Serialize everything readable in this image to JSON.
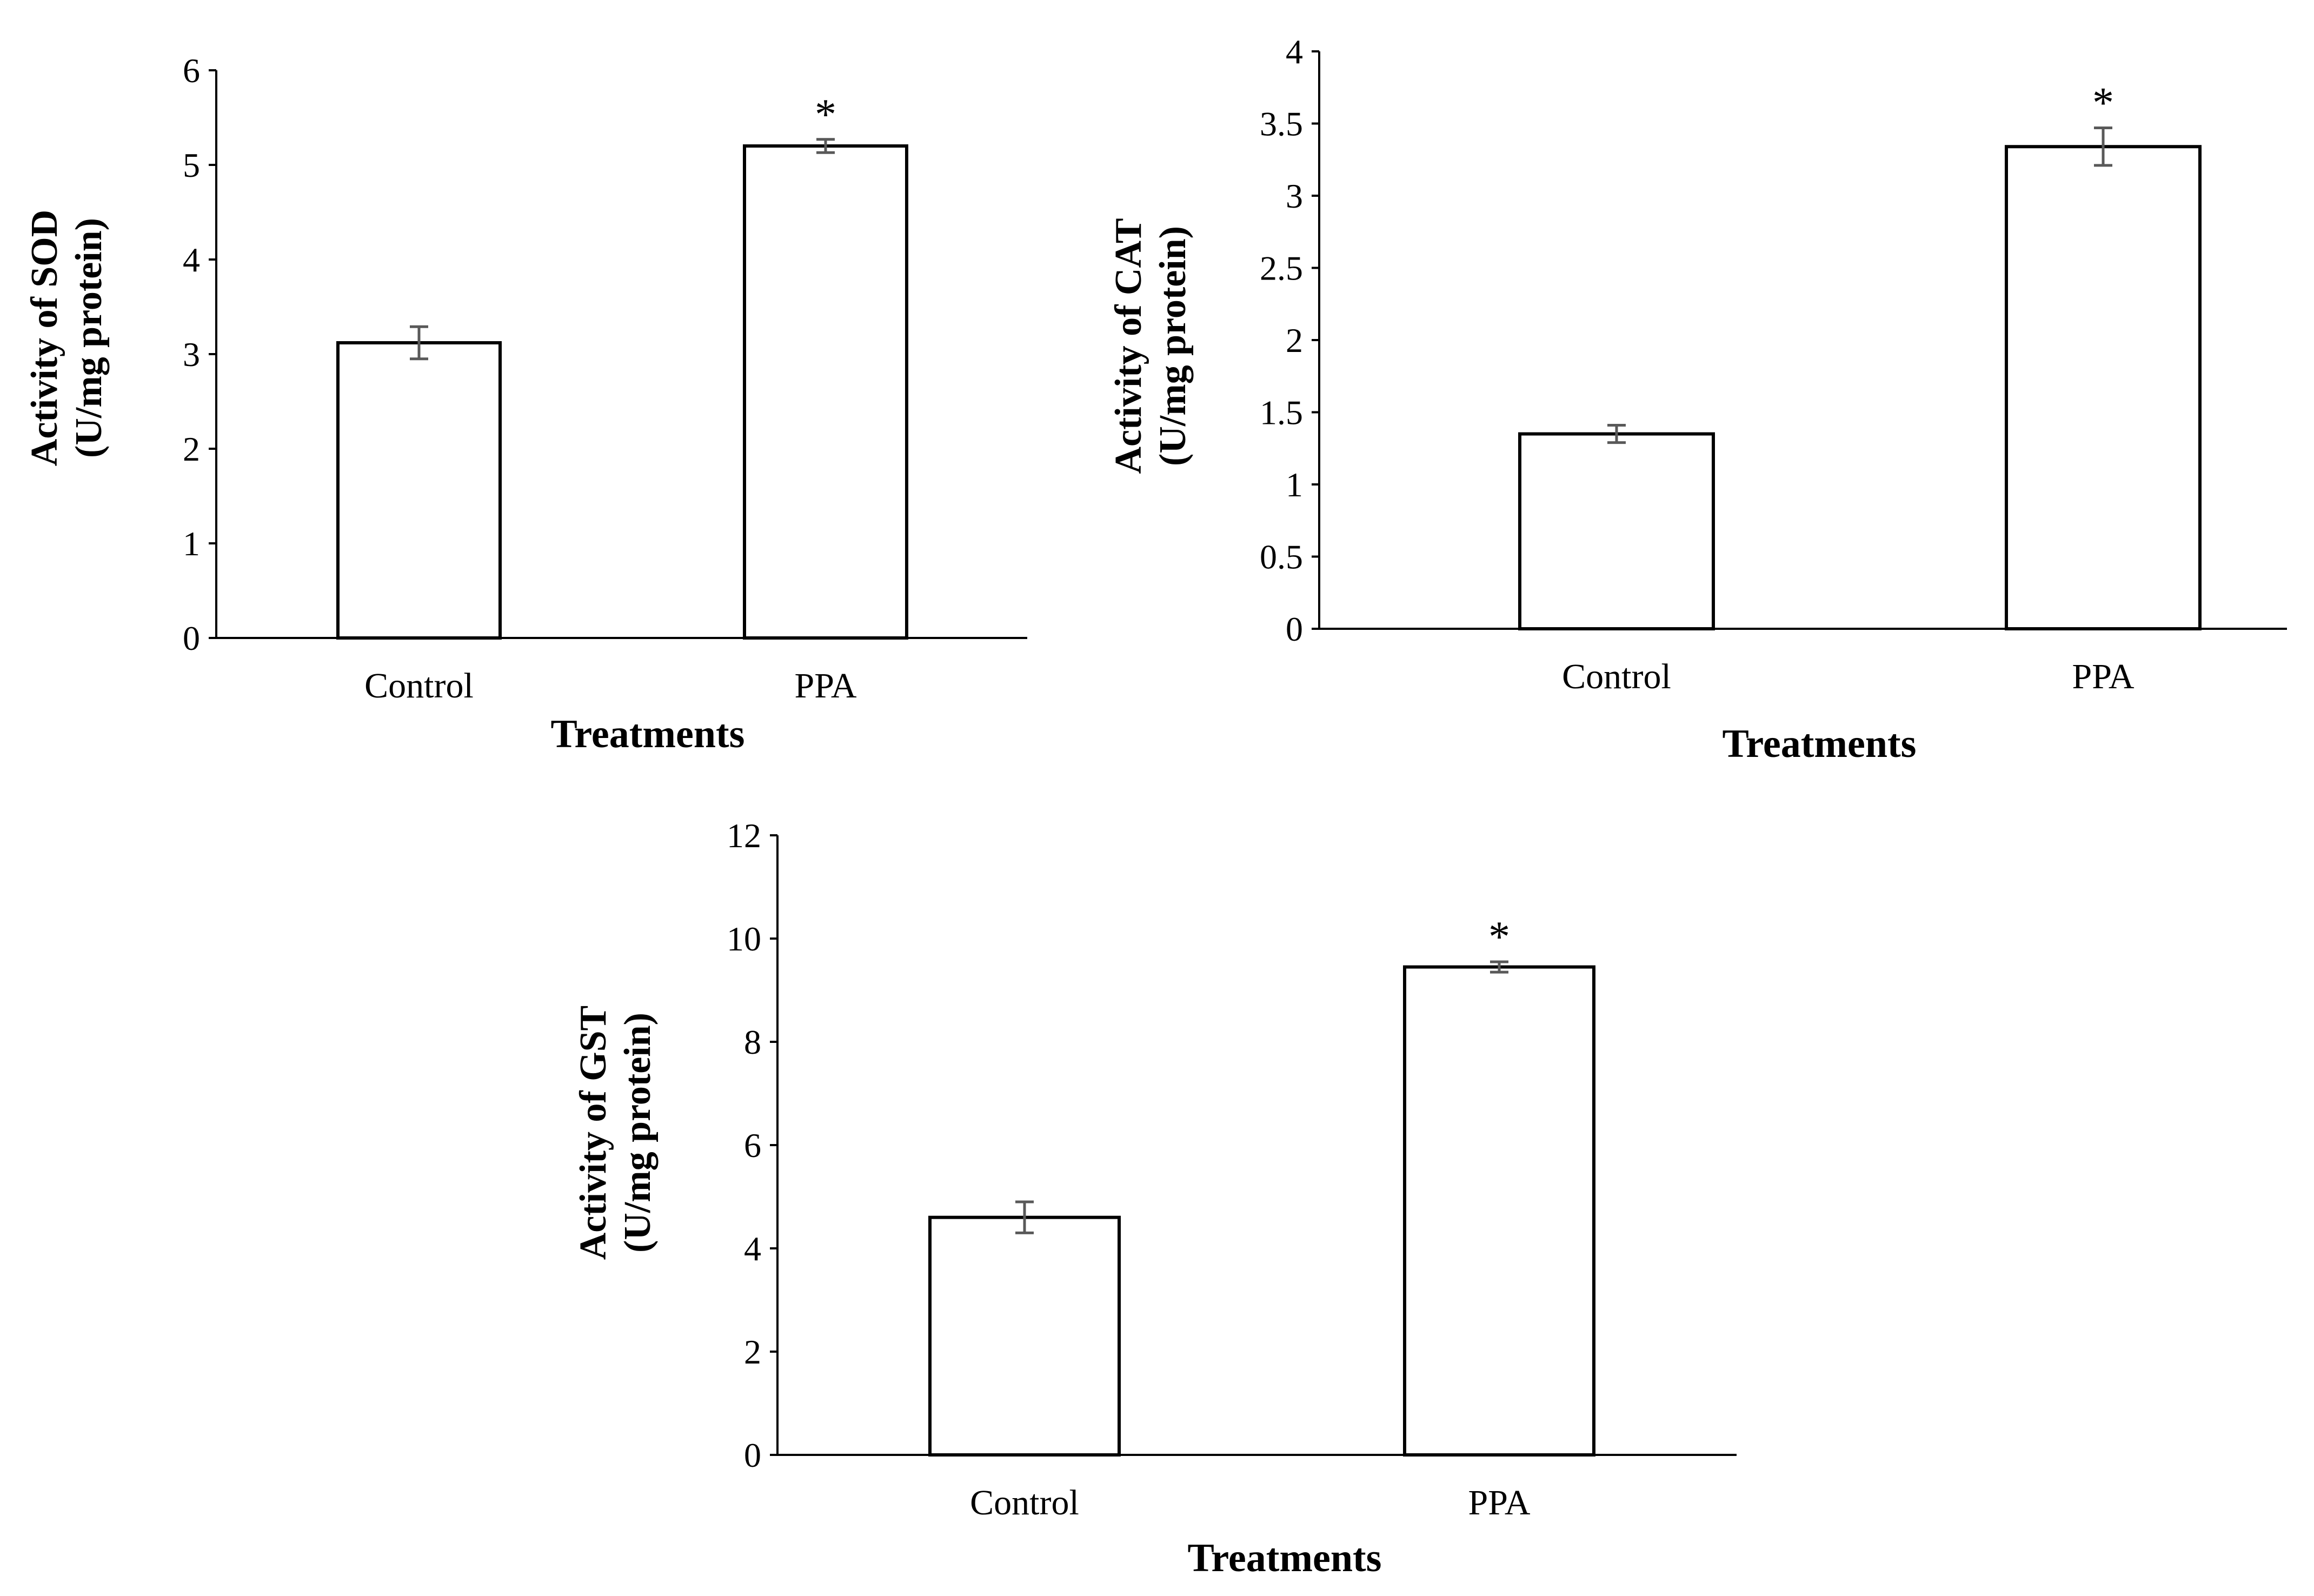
{
  "chart_data": [
    {
      "id": "sod",
      "type": "bar",
      "title": "",
      "categories": [
        "Control",
        "PPA"
      ],
      "values": [
        3.12,
        5.2
      ],
      "errors": [
        0.17,
        0.07
      ],
      "annotations": [
        "",
        "*"
      ],
      "xlabel": "Treatments",
      "ylabel": [
        "Activity of SOD",
        "(U/mg protein)"
      ],
      "ylim": [
        0,
        6
      ],
      "yticks": [
        0,
        1,
        2,
        3,
        4,
        5,
        6
      ],
      "ytick_labels": [
        "0",
        "1",
        "2",
        "3",
        "4",
        "5",
        "6"
      ],
      "grid": false,
      "legend": "none"
    },
    {
      "id": "cat",
      "type": "bar",
      "title": "",
      "categories": [
        "Control",
        "PPA"
      ],
      "values": [
        1.35,
        3.34
      ],
      "errors": [
        0.06,
        0.13
      ],
      "annotations": [
        "",
        "*"
      ],
      "xlabel": "Treatments",
      "ylabel": [
        "Activity of CAT",
        "(U/mg protein)"
      ],
      "ylim": [
        0,
        4
      ],
      "yticks": [
        0,
        0.5,
        1,
        1.5,
        2,
        2.5,
        3,
        3.5,
        4
      ],
      "ytick_labels": [
        "0",
        "0.5",
        "1",
        "1.5",
        "2",
        "2.5",
        "3",
        "3.5",
        "4"
      ],
      "grid": false,
      "legend": "none"
    },
    {
      "id": "gst",
      "type": "bar",
      "title": "",
      "categories": [
        "Control",
        "PPA"
      ],
      "values": [
        4.6,
        9.45
      ],
      "errors": [
        0.3,
        0.1
      ],
      "annotations": [
        "",
        "*"
      ],
      "xlabel": "Treatments",
      "ylabel": [
        "Activity of GST",
        "(U/mg protein)"
      ],
      "ylim": [
        0,
        12
      ],
      "yticks": [
        0,
        2,
        4,
        6,
        8,
        10,
        12
      ],
      "ytick_labels": [
        "0",
        "2",
        "4",
        "6",
        "8",
        "10",
        "12"
      ],
      "grid": false,
      "legend": "none"
    }
  ]
}
